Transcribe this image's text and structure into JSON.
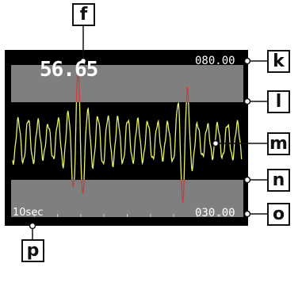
{
  "display": {
    "value": "56.65",
    "upper_limit": "080.00",
    "lower_limit": "030.00",
    "time_span": "10sec"
  },
  "callouts": {
    "f": "f",
    "k": "k",
    "l": "l",
    "m": "m",
    "n": "n",
    "o": "o",
    "p": "p"
  },
  "colors": {
    "frame": "#000000",
    "out_of_range_band": "#7f7f7f",
    "in_range_band": "#000000",
    "trace_in_range": "#e8f06a",
    "trace_out_of_range": "#d23a3a"
  }
}
